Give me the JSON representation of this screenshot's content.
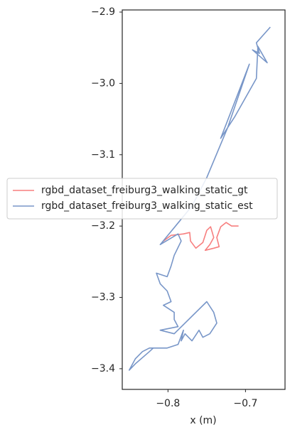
{
  "chart_data": {
    "type": "line",
    "xlabel": "x (m)",
    "xlim": [
      -0.859,
      -0.649
    ],
    "ylim": [
      -3.429,
      -2.897
    ],
    "xticks": [
      {
        "value": -0.8,
        "label": "−0.8"
      },
      {
        "value": -0.7,
        "label": "−0.7"
      }
    ],
    "yticks": [
      {
        "value": -2.9,
        "label": "−2.9"
      },
      {
        "value": -3.0,
        "label": "−3.0"
      },
      {
        "value": -3.1,
        "label": "−3.1"
      },
      {
        "value": -3.2,
        "label": "−3.2"
      },
      {
        "value": -3.3,
        "label": "−3.3"
      },
      {
        "value": -3.4,
        "label": "−3.4"
      }
    ],
    "legend": "center left",
    "series": [
      {
        "name": "rgbd_dataset_freiburg3_walking_static_gt",
        "color": "#f77f7f",
        "x": [
          -0.807,
          -0.796,
          -0.78,
          -0.772,
          -0.771,
          -0.764,
          -0.755,
          -0.75,
          -0.745,
          -0.741,
          -0.746,
          -0.752,
          -0.741,
          -0.734,
          -0.737,
          -0.732,
          -0.725,
          -0.718,
          -0.709
        ],
        "y": [
          -3.222,
          -3.213,
          -3.211,
          -3.209,
          -3.221,
          -3.231,
          -3.223,
          -3.206,
          -3.201,
          -3.216,
          -3.226,
          -3.234,
          -3.231,
          -3.229,
          -3.216,
          -3.201,
          -3.195,
          -3.2,
          -3.2
        ]
      },
      {
        "name": "rgbd_dataset_freiburg3_walking_static_est",
        "color": "#7896c8",
        "x": [
          -0.668,
          -0.686,
          -0.682,
          -0.691,
          -0.672,
          -0.684,
          -0.686,
          -0.714,
          -0.732,
          -0.695,
          -0.723,
          -0.75,
          -0.769,
          -0.81,
          -0.787,
          -0.783,
          -0.792,
          -0.796,
          -0.801,
          -0.815,
          -0.81,
          -0.801,
          -0.796,
          -0.806,
          -0.792,
          -0.792,
          -0.787,
          -0.81,
          -0.792,
          -0.75,
          -0.741,
          -0.737,
          -0.746,
          -0.755,
          -0.76,
          -0.769,
          -0.778,
          -0.783,
          -0.78,
          -0.787,
          -0.801,
          -0.824,
          -0.833,
          -0.842,
          -0.85,
          -0.842,
          -0.824,
          -0.819
        ],
        "y": [
          -2.921,
          -2.943,
          -2.958,
          -2.953,
          -2.971,
          -2.948,
          -2.993,
          -3.047,
          -3.077,
          -2.973,
          -3.062,
          -3.132,
          -3.172,
          -3.226,
          -3.211,
          -3.221,
          -3.241,
          -3.256,
          -3.271,
          -3.266,
          -3.281,
          -3.291,
          -3.306,
          -3.311,
          -3.321,
          -3.331,
          -3.341,
          -3.346,
          -3.351,
          -3.306,
          -3.321,
          -3.336,
          -3.351,
          -3.356,
          -3.346,
          -3.361,
          -3.351,
          -3.361,
          -3.346,
          -3.366,
          -3.371,
          -3.371,
          -3.376,
          -3.386,
          -3.402,
          -3.393,
          -3.376,
          -3.371
        ]
      }
    ]
  }
}
